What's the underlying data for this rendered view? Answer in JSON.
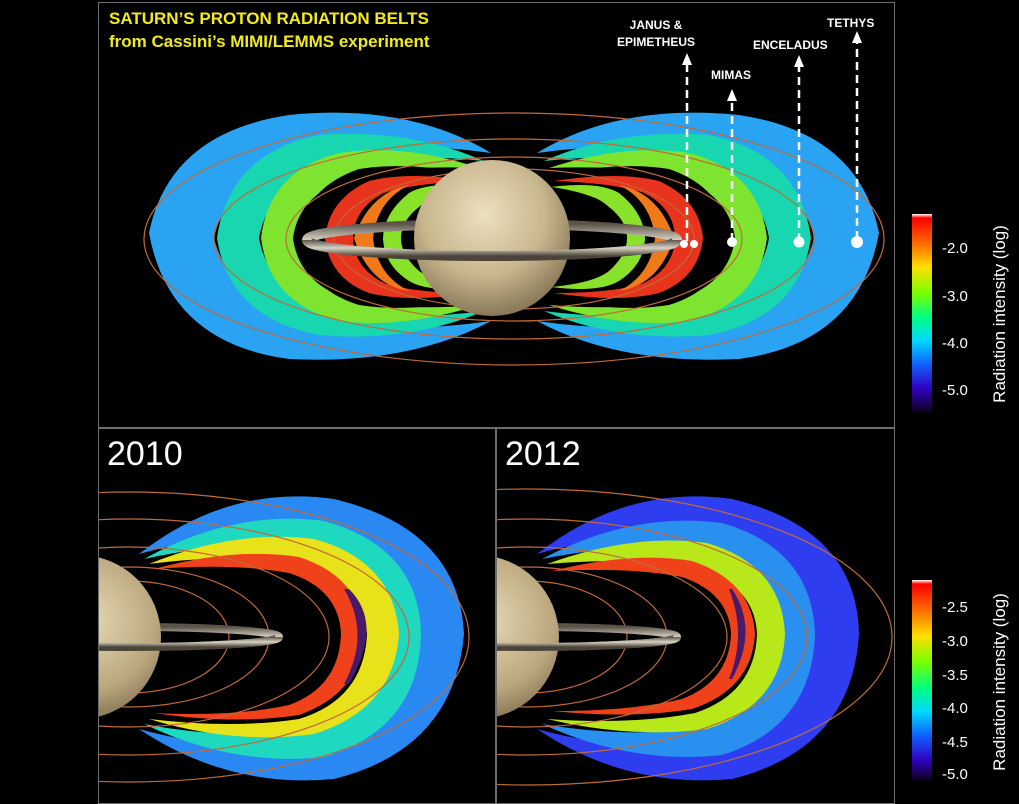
{
  "title": {
    "line1": "SATURN’S PROTON RADIATION BELTS",
    "line2": "from Cassini’s MIMI/LEMMS experiment"
  },
  "moons": [
    {
      "name_line1": "JANUS &",
      "name_line2": "EPIMETHEUS"
    },
    {
      "name_line1": "MIMAS",
      "name_line2": ""
    },
    {
      "name_line1": "ENCELADUS",
      "name_line2": ""
    },
    {
      "name_line1": "TETHYS",
      "name_line2": ""
    }
  ],
  "panels": {
    "year_left": "2010",
    "year_right": "2012"
  },
  "colorbar_top": {
    "label": "Radiation intensity (log)",
    "ticks": [
      "-2.0",
      "-3.0",
      "-4.0",
      "-5.0"
    ]
  },
  "colorbar_bottom": {
    "label": "Radiation intensity (log)",
    "ticks": [
      "-2.5",
      "-3.0",
      "-3.5",
      "-4.0",
      "-4.5",
      "-5.0"
    ]
  },
  "colors": {
    "title": "#f2ea1b",
    "panel_border": "#6e6e6e",
    "belt_boundary": "#c06a3a"
  }
}
